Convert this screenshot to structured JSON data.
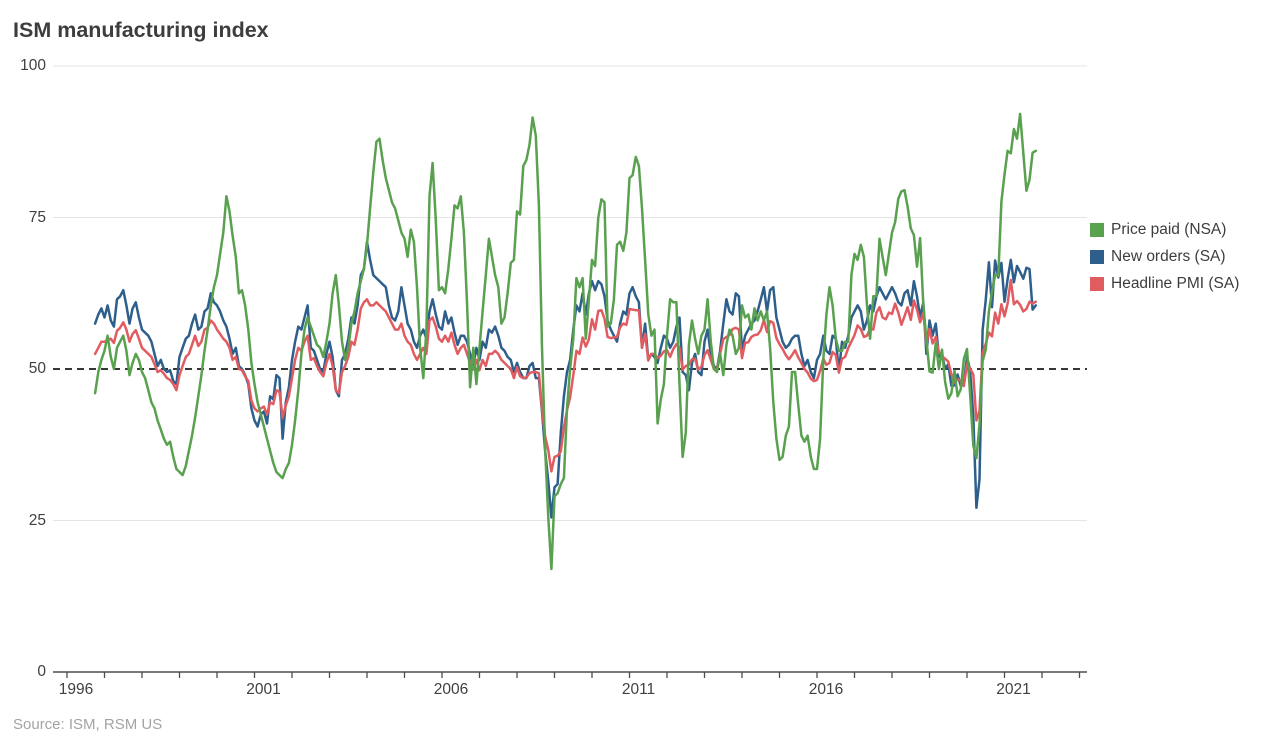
{
  "title": "ISM manufacturing index",
  "source": "Source: ISM, RSM US",
  "legend": [
    {
      "label": "Price paid (NSA)",
      "color": "#59a14f"
    },
    {
      "label": "New orders (SA)",
      "color": "#2e5f8c"
    },
    {
      "label": "Headline PMI (SA)",
      "color": "#e15c61"
    }
  ],
  "chart_data": {
    "type": "line",
    "title": "ISM manufacturing index",
    "xlabel": "",
    "ylabel": "",
    "x_start": "1996-10",
    "frequency": "monthly",
    "x_axis": {
      "tick_labels": [
        1996,
        2001,
        2006,
        2011,
        2016,
        2021
      ],
      "minor_tick_every_years": 1,
      "last_minor_tick": 2023
    },
    "y_axis": {
      "ticks": [
        100,
        75,
        50,
        25,
        0
      ],
      "range": [
        0,
        100
      ]
    },
    "reference_line": 50,
    "grid": "horizontal-light",
    "legend_position": "right",
    "colors": {
      "prices_paid": "#59a14f",
      "new_orders": "#2e5f8c",
      "pmi": "#e15c61",
      "grid": "#e4e4e4",
      "axis": "#4d4d4d",
      "reference": "#1a1a1a"
    },
    "series": [
      {
        "name": "New orders (SA)",
        "color": "#2e5f8c",
        "values": [
          57.5,
          59.0,
          60.0,
          58.5,
          60.5,
          58.0,
          57.0,
          61.5,
          62.0,
          63.0,
          60.5,
          57.5,
          60.0,
          61.0,
          58.5,
          56.5,
          56.0,
          55.5,
          54.5,
          52.5,
          50.5,
          51.5,
          50.0,
          49.5,
          49.8,
          48.0,
          47.5,
          52.0,
          53.5,
          55.0,
          55.5,
          57.5,
          59.0,
          56.5,
          57.0,
          59.5,
          60.0,
          62.5,
          61.0,
          60.5,
          59.5,
          58.0,
          57.0,
          55.0,
          52.5,
          53.5,
          50.5,
          50.0,
          49.0,
          47.5,
          43.5,
          41.5,
          40.5,
          42.5,
          43.0,
          41.0,
          45.5,
          45.0,
          49.0,
          48.5,
          38.5,
          44.5,
          47.0,
          51.5,
          54.5,
          57.0,
          56.5,
          58.5,
          60.5,
          53.5,
          53.0,
          51.5,
          50.0,
          49.5,
          52.5,
          54.5,
          52.0,
          46.5,
          45.5,
          51.5,
          52.5,
          55.0,
          58.5,
          57.5,
          60.5,
          65.5,
          66.5,
          71.0,
          68.0,
          65.5,
          65.0,
          64.5,
          64.0,
          63.5,
          60.5,
          58.5,
          58.0,
          59.5,
          63.5,
          60.5,
          57.5,
          56.5,
          54.5,
          53.5,
          55.5,
          56.5,
          55.0,
          59.5,
          61.5,
          59.0,
          57.0,
          56.5,
          59.5,
          57.5,
          58.5,
          56.0,
          54.0,
          55.5,
          55.5,
          54.5,
          52.5,
          50.5,
          53.5,
          51.5,
          54.5,
          53.5,
          56.5,
          56.0,
          57.0,
          55.5,
          53.5,
          53.0,
          52.0,
          51.5,
          49.5,
          51.0,
          49.5,
          48.5,
          48.5,
          50.5,
          51.0,
          48.5,
          48.5,
          43.0,
          36.5,
          31.5,
          25.5,
          30.5,
          31.0,
          39.5,
          45.5,
          49.5,
          51.5,
          56.5,
          60.5,
          59.5,
          62.5,
          59.0,
          62.5,
          64.5,
          63.0,
          64.5,
          64.0,
          62.0,
          58.0,
          56.5,
          55.5,
          54.5,
          57.5,
          59.5,
          59.0,
          62.5,
          63.5,
          62.0,
          61.0,
          53.5,
          57.5,
          51.5,
          52.5,
          52.0,
          51.0,
          53.5,
          55.5,
          55.0,
          53.5,
          54.5,
          57.0,
          58.5,
          49.5,
          49.0,
          46.5,
          51.0,
          52.5,
          49.5,
          49.0,
          54.5,
          56.5,
          52.5,
          50.5,
          50.0,
          53.0,
          57.5,
          61.5,
          59.5,
          59.0,
          62.5,
          62.0,
          53.0,
          55.5,
          56.5,
          57.5,
          58.0,
          59.5,
          61.5,
          63.5,
          59.5,
          63.0,
          63.5,
          58.5,
          56.5,
          54.5,
          53.5,
          54.0,
          55.0,
          55.5,
          55.5,
          52.5,
          50.5,
          51.5,
          49.5,
          48.5,
          51.5,
          52.5,
          55.5,
          53.0,
          52.5,
          55.5,
          55.0,
          49.5,
          54.5,
          53.5,
          55.5,
          58.5,
          59.5,
          60.5,
          59.5,
          56.5,
          58.0,
          60.5,
          59.5,
          62.0,
          63.5,
          62.5,
          61.5,
          62.5,
          63.5,
          62.5,
          61.0,
          60.5,
          62.5,
          63.0,
          60.5,
          64.5,
          62.0,
          58.5,
          61.0,
          52.5,
          58.0,
          55.5,
          57.5,
          52.0,
          52.5,
          50.0,
          50.8,
          47.2,
          47.3,
          49.1,
          47.2,
          47.6,
          52.0,
          49.8,
          42.2,
          27.1,
          31.8,
          56.4,
          61.5,
          67.6,
          60.2,
          67.9,
          65.1,
          67.5,
          61.1,
          64.8,
          68.0,
          64.3,
          67.0,
          66.0,
          64.9,
          66.7,
          66.5,
          59.8,
          60.5
        ]
      },
      {
        "name": "Headline PMI (SA)",
        "color": "#e15c61",
        "values": [
          52.5,
          53.5,
          54.5,
          54.5,
          54.8,
          55.0,
          54.3,
          56.3,
          56.8,
          57.7,
          56.5,
          54.5,
          55.8,
          56.4,
          55.0,
          53.5,
          53.0,
          52.5,
          52.0,
          50.8,
          49.5,
          49.8,
          49.2,
          48.5,
          48.2,
          47.5,
          46.5,
          49.0,
          50.5,
          52.0,
          52.5,
          54.0,
          55.5,
          53.8,
          54.5,
          56.5,
          56.8,
          58.0,
          57.5,
          56.5,
          55.8,
          55.0,
          54.5,
          53.5,
          51.5,
          52.0,
          50.0,
          49.8,
          48.8,
          48.0,
          44.8,
          43.5,
          43.0,
          43.5,
          43.8,
          42.5,
          44.5,
          44.2,
          46.5,
          46.2,
          42.0,
          44.0,
          45.5,
          48.5,
          51.5,
          53.5,
          53.0,
          54.5,
          55.5,
          51.5,
          51.8,
          50.5,
          49.5,
          48.8,
          51.0,
          52.5,
          50.5,
          46.5,
          46.0,
          49.5,
          50.5,
          52.0,
          54.5,
          54.0,
          56.5,
          60.0,
          61.0,
          61.5,
          60.5,
          60.5,
          61.0,
          60.5,
          60.0,
          59.5,
          58.5,
          57.5,
          56.5,
          56.5,
          57.5,
          55.5,
          54.5,
          54.0,
          52.5,
          51.5,
          52.5,
          53.5,
          52.5,
          58.0,
          58.5,
          57.0,
          55.0,
          54.5,
          55.5,
          54.5,
          56.0,
          54.0,
          52.5,
          53.5,
          54.0,
          52.5,
          51.0,
          49.9,
          51.5,
          49.8,
          51.5,
          50.5,
          52.5,
          52.5,
          53.0,
          52.5,
          51.5,
          51.0,
          50.5,
          50.0,
          48.5,
          50.3,
          48.8,
          48.5,
          48.6,
          49.3,
          49.5,
          49.5,
          49.3,
          43.5,
          38.9,
          36.6,
          33.1,
          35.5,
          35.7,
          36.4,
          40.4,
          43.2,
          45.3,
          49.0,
          53.0,
          52.5,
          55.2,
          53.7,
          54.9,
          58.2,
          56.5,
          59.6,
          59.7,
          58.3,
          55.3,
          55.1,
          55.2,
          55.3,
          56.9,
          57.5,
          57.3,
          59.9,
          59.8,
          59.7,
          59.7,
          53.5,
          55.8,
          51.4,
          52.5,
          52.5,
          51.8,
          52.2,
          52.9,
          53.1,
          52.0,
          53.3,
          54.1,
          53.5,
          49.9,
          50.5,
          50.7,
          51.6,
          51.7,
          49.9,
          50.4,
          52.3,
          53.1,
          51.5,
          50.0,
          50.0,
          52.5,
          54.9,
          55.3,
          55.6,
          56.6,
          56.8,
          56.5,
          51.8,
          54.3,
          54.4,
          55.3,
          55.6,
          55.7,
          56.4,
          58.1,
          56.1,
          57.9,
          57.6,
          55.1,
          54.1,
          53.3,
          52.3,
          51.6,
          52.3,
          53.1,
          51.9,
          51.0,
          50.0,
          49.4,
          48.4,
          48.0,
          48.2,
          49.7,
          51.7,
          50.7,
          51.0,
          52.8,
          52.3,
          49.4,
          51.7,
          52.0,
          53.5,
          54.5,
          55.6,
          57.2,
          56.6,
          55.3,
          55.5,
          56.7,
          56.5,
          59.3,
          60.2,
          58.5,
          58.2,
          59.3,
          59.1,
          60.8,
          59.3,
          57.3,
          58.7,
          60.2,
          58.1,
          61.3,
          59.8,
          57.7,
          59.3,
          54.1,
          56.6,
          54.2,
          55.3,
          52.8,
          52.1,
          51.7,
          51.2,
          49.1,
          47.8,
          48.3,
          48.1,
          47.2,
          50.9,
          50.1,
          49.1,
          41.5,
          43.1,
          52.6,
          54.2,
          56.0,
          55.4,
          59.3,
          57.5,
          60.7,
          58.7,
          60.8,
          64.7,
          60.7,
          61.2,
          60.6,
          59.5,
          59.9,
          61.1,
          60.8,
          61.1
        ]
      },
      {
        "name": "Price paid (NSA)",
        "color": "#59a14f",
        "values": [
          46.0,
          49.5,
          51.5,
          53.0,
          55.5,
          52.0,
          50.0,
          53.5,
          54.5,
          55.5,
          53.0,
          49.0,
          51.0,
          52.5,
          51.5,
          49.5,
          48.5,
          46.5,
          44.5,
          43.5,
          41.5,
          40.0,
          38.5,
          37.5,
          38.0,
          35.5,
          33.5,
          33.0,
          32.5,
          34.0,
          36.5,
          39.0,
          42.0,
          45.5,
          49.0,
          53.0,
          56.5,
          60.5,
          63.5,
          65.5,
          69.0,
          72.5,
          78.5,
          76.0,
          72.0,
          68.5,
          62.5,
          63.0,
          60.5,
          56.5,
          51.0,
          47.5,
          44.5,
          42.5,
          40.5,
          38.5,
          36.5,
          34.5,
          33.0,
          32.5,
          32.0,
          33.5,
          34.5,
          37.5,
          41.5,
          46.5,
          52.5,
          56.5,
          58.5,
          57.0,
          55.5,
          54.0,
          53.5,
          52.0,
          54.5,
          57.5,
          62.5,
          65.5,
          60.5,
          54.5,
          51.5,
          53.5,
          57.5,
          59.5,
          62.5,
          64.5,
          66.5,
          70.5,
          76.5,
          82.5,
          87.5,
          88.0,
          84.5,
          81.5,
          79.5,
          77.5,
          76.5,
          74.5,
          72.5,
          71.5,
          68.5,
          73.0,
          71.0,
          63.5,
          53.5,
          48.5,
          56.5,
          78.5,
          84.0,
          74.5,
          63.0,
          63.5,
          62.5,
          66.5,
          71.5,
          77.0,
          76.5,
          78.5,
          72.5,
          61.0,
          47.0,
          53.5,
          47.5,
          53.5,
          59.5,
          65.5,
          71.5,
          68.5,
          65.5,
          63.5,
          57.5,
          58.5,
          62.5,
          67.5,
          68.0,
          76.0,
          75.5,
          83.5,
          84.5,
          87.0,
          91.5,
          88.5,
          77.0,
          53.5,
          37.0,
          25.5,
          17.0,
          29.0,
          29.5,
          31.0,
          32.0,
          43.5,
          50.0,
          55.0,
          65.0,
          63.5,
          65.0,
          55.0,
          61.5,
          68.0,
          67.0,
          75.0,
          78.0,
          77.5,
          57.0,
          57.5,
          61.5,
          70.5,
          71.0,
          69.5,
          72.5,
          81.5,
          82.0,
          85.0,
          83.5,
          76.5,
          68.0,
          59.0,
          55.5,
          56.5,
          41.0,
          45.0,
          47.5,
          55.5,
          61.5,
          61.0,
          61.0,
          47.5,
          35.5,
          39.5,
          54.0,
          58.0,
          55.0,
          52.5,
          55.5,
          56.5,
          61.5,
          54.5,
          50.0,
          49.5,
          52.5,
          49.0,
          54.0,
          56.5,
          55.5,
          52.5,
          53.5,
          60.5,
          58.5,
          59.0,
          56.5,
          60.0,
          58.0,
          59.5,
          58.0,
          59.5,
          53.5,
          44.5,
          38.5,
          35.0,
          35.5,
          39.0,
          40.5,
          49.5,
          49.5,
          44.0,
          39.0,
          38.0,
          39.0,
          35.5,
          33.5,
          33.5,
          38.5,
          51.5,
          59.0,
          63.5,
          60.5,
          55.0,
          53.0,
          53.0,
          54.5,
          54.5,
          65.5,
          69.0,
          68.0,
          70.5,
          68.5,
          60.5,
          55.0,
          62.0,
          62.0,
          71.5,
          68.5,
          65.5,
          69.0,
          72.5,
          74.2,
          78.1,
          79.3,
          79.5,
          76.8,
          73.2,
          72.1,
          66.9,
          71.6,
          60.7,
          54.9,
          49.6,
          49.4,
          54.3,
          50.0,
          53.2,
          47.9,
          45.1,
          46.0,
          49.7,
          45.5,
          46.7,
          51.7,
          53.3,
          45.9,
          37.4,
          35.3,
          40.8,
          51.3,
          53.2,
          59.5,
          62.8,
          65.5,
          65.4,
          77.6,
          82.1,
          86.0,
          85.6,
          89.6,
          88.0,
          92.1,
          85.7,
          79.4,
          81.2,
          85.7,
          86.0
        ]
      }
    ]
  }
}
